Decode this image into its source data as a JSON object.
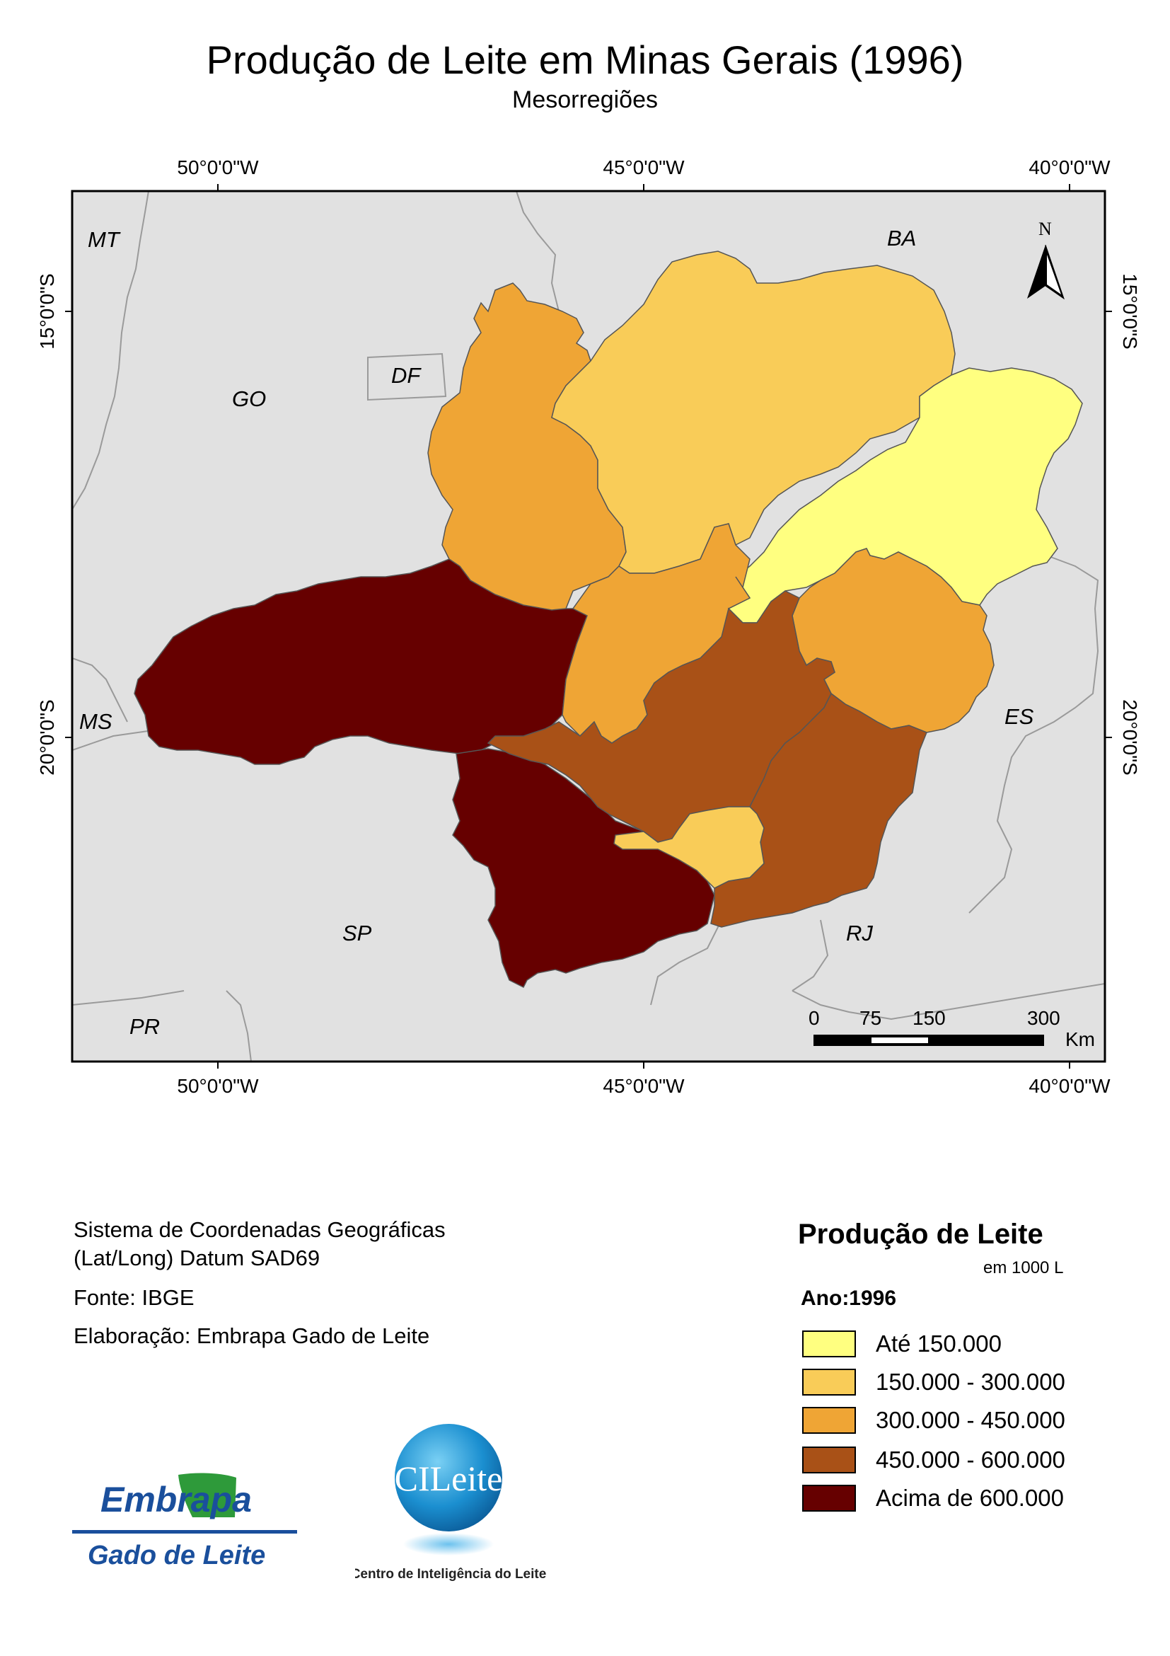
{
  "title": "Produção de Leite em Minas Gerais (1996)",
  "subtitle": "Mesorregiões",
  "map": {
    "graticule": {
      "top": [
        "50°0'0\"W",
        "45°0'0\"W",
        "40°0'0\"W"
      ],
      "bottom": [
        "50°0'0\"W",
        "45°0'0\"W",
        "40°0'0\"W"
      ],
      "left": [
        "15°0'0\"S",
        "20°0'0\"S"
      ],
      "right": [
        "15°0'0\"S",
        "20°0'0\"S"
      ]
    },
    "state_labels": [
      "MT",
      "BA",
      "DF",
      "GO",
      "MS",
      "ES",
      "SP",
      "RJ",
      "PR"
    ],
    "north_label": "N",
    "scale_bar": {
      "ticks": [
        "0",
        "75",
        "150",
        "300"
      ],
      "unit": "Km"
    },
    "colors": {
      "background": "#e1e1e1",
      "class1": "#ffff80",
      "class2": "#f9cc58",
      "class3": "#efa535",
      "class4": "#a95117",
      "class5": "#660000"
    }
  },
  "info": {
    "coord_line1": "Sistema de Coordenadas Geográficas",
    "coord_line2": "(Lat/Long) Datum SAD69",
    "source": "Fonte: IBGE",
    "author": "Elaboração: Embrapa Gado de Leite"
  },
  "legend": {
    "title": "Produção de Leite",
    "unit": "em 1000 L",
    "year": "Ano:1996",
    "items": [
      {
        "label": "Até 150.000",
        "color": "#ffff80"
      },
      {
        "label": "150.000 - 300.000",
        "color": "#f9cc58"
      },
      {
        "label": "300.000 - 450.000",
        "color": "#efa535"
      },
      {
        "label": "450.000 - 600.000",
        "color": "#a95117"
      },
      {
        "label": "Acima de 600.000",
        "color": "#660000"
      }
    ]
  },
  "logos": {
    "embrapa_top": "Embrapa",
    "embrapa_bottom": "Gado de Leite",
    "cileite_top": "CILeite",
    "cileite_bottom": "Centro de Inteligência do Leite"
  }
}
